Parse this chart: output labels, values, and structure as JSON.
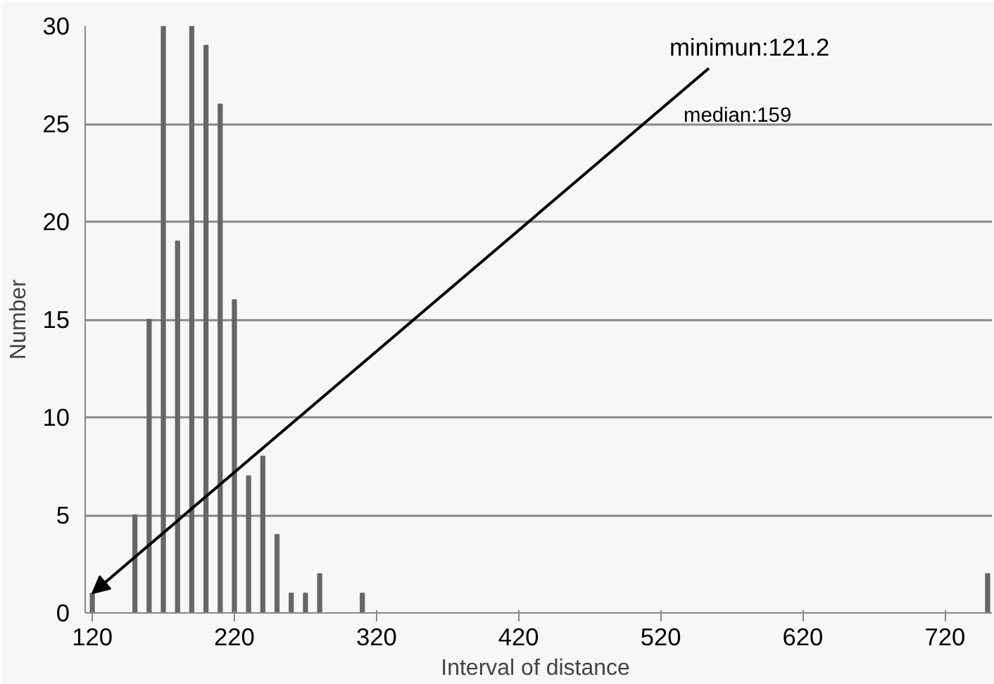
{
  "chart_data": {
    "type": "bar",
    "xlabel": "Interval of  distance",
    "ylabel": "Number",
    "x": [
      120,
      150,
      160,
      170,
      180,
      190,
      200,
      210,
      220,
      230,
      240,
      250,
      260,
      270,
      280,
      310,
      750
    ],
    "values": [
      1,
      5,
      15,
      30,
      19,
      30,
      29,
      26,
      16,
      7,
      8,
      4,
      1,
      1,
      2,
      1,
      2
    ],
    "color": "#666666",
    "xlim": [
      115,
      753
    ],
    "xticks": [
      120,
      220,
      320,
      420,
      520,
      620,
      720
    ],
    "ylim": [
      0,
      30
    ],
    "yticks": [
      0,
      5,
      10,
      15,
      20,
      25,
      30
    ],
    "grid": "y",
    "annotations": [
      {
        "text": "minimun:121.2",
        "x": 120,
        "y": 1
      },
      "median:159"
    ]
  }
}
